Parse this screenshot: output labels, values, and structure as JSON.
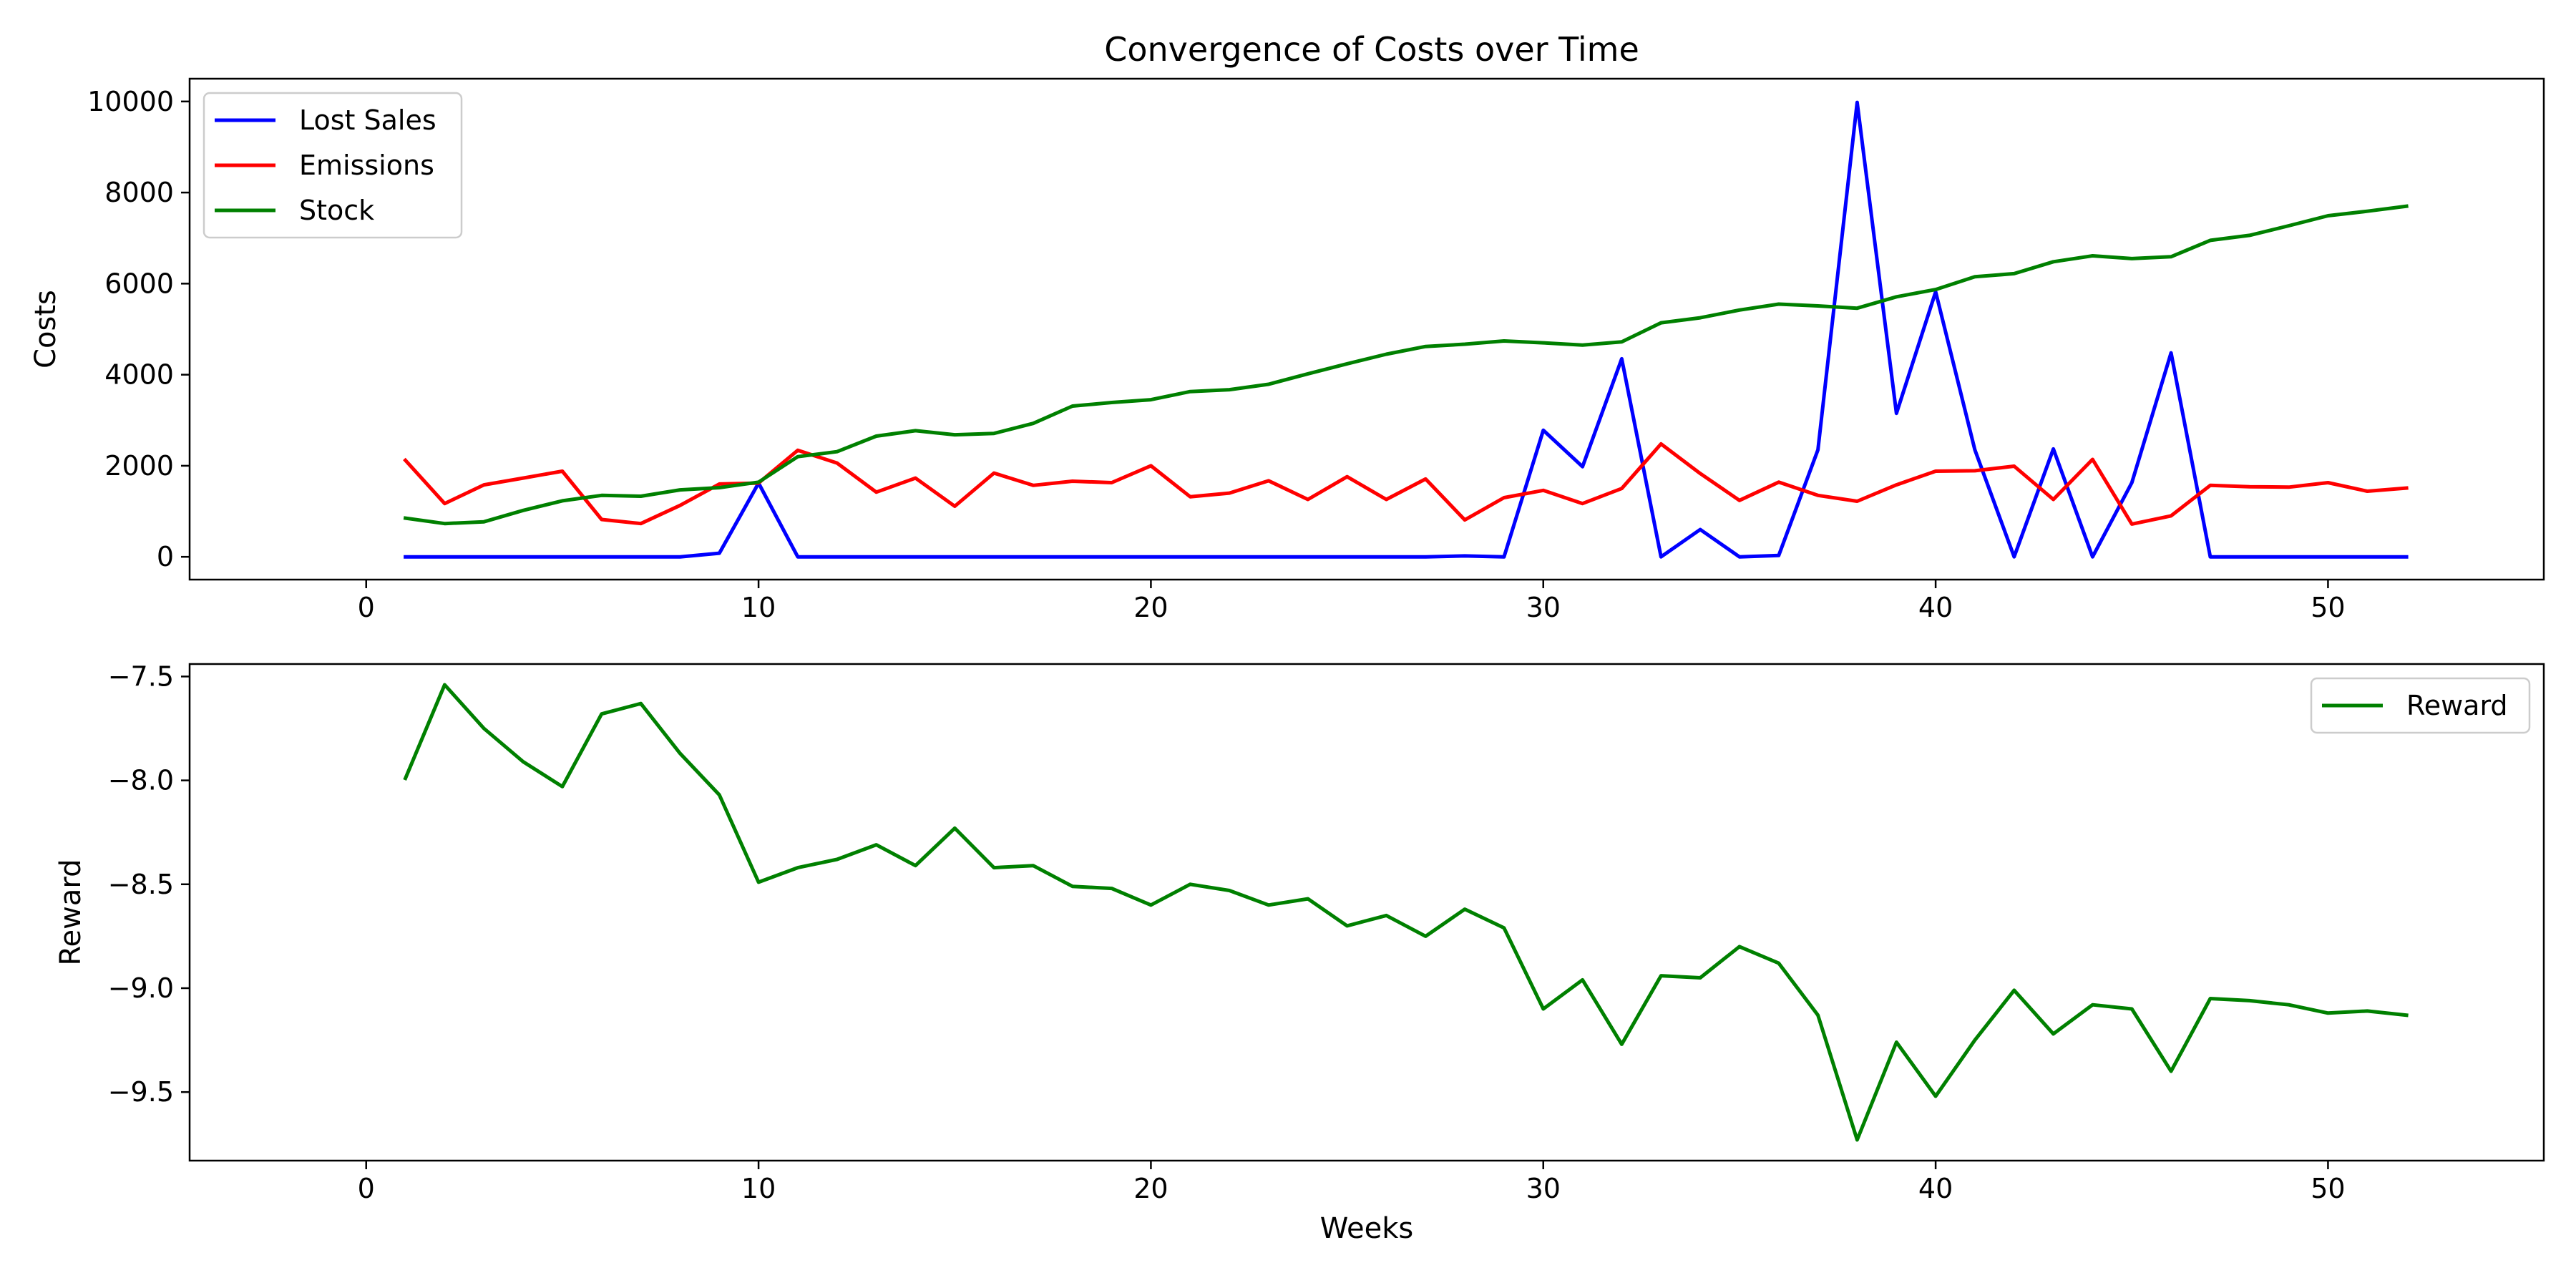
{
  "chart_data": [
    {
      "type": "line",
      "title": "Convergence of Costs over Time",
      "xlabel": "",
      "ylabel": "Costs",
      "xlim": [
        -4.5,
        55.5
      ],
      "ylim": [
        -500,
        10500
      ],
      "xticks": [
        0,
        10,
        20,
        30,
        40,
        50
      ],
      "yticks": [
        0,
        2000,
        4000,
        6000,
        8000,
        10000
      ],
      "xtick_labels": [
        "0",
        "10",
        "20",
        "30",
        "40",
        "50"
      ],
      "ytick_labels": [
        "0",
        "2000",
        "4000",
        "6000",
        "8000",
        "10000"
      ],
      "grid": false,
      "legend": "upper-left",
      "x": [
        1,
        2,
        3,
        4,
        5,
        6,
        7,
        8,
        9,
        10,
        11,
        12,
        13,
        14,
        15,
        16,
        17,
        18,
        19,
        20,
        21,
        22,
        23,
        24,
        25,
        26,
        27,
        28,
        29,
        30,
        31,
        32,
        33,
        34,
        35,
        36,
        37,
        38,
        39,
        40,
        41,
        42,
        43,
        44,
        45,
        46,
        47,
        48,
        49,
        50,
        51,
        52
      ],
      "series": [
        {
          "name": "Lost Sales",
          "color": "#0000ff",
          "values": [
            0,
            0,
            0,
            0,
            0,
            0,
            0,
            0,
            80,
            1620,
            0,
            0,
            0,
            0,
            0,
            0,
            0,
            0,
            0,
            0,
            0,
            0,
            0,
            0,
            0,
            0,
            0,
            20,
            0,
            2780,
            1980,
            4350,
            0,
            600,
            0,
            30,
            2350,
            9980,
            3150,
            5820,
            2350,
            0,
            2370,
            0,
            1630,
            4480,
            0,
            0,
            0,
            0,
            0,
            0
          ]
        },
        {
          "name": "Emissions",
          "color": "#ff0000",
          "values": [
            2120,
            1170,
            1580,
            1730,
            1880,
            820,
            730,
            1130,
            1600,
            1620,
            2340,
            2060,
            1420,
            1730,
            1110,
            1840,
            1570,
            1660,
            1630,
            2000,
            1320,
            1400,
            1670,
            1260,
            1760,
            1260,
            1710,
            810,
            1300,
            1460,
            1170,
            1500,
            2480,
            1830,
            1240,
            1640,
            1350,
            1220,
            1580,
            1880,
            1890,
            1990,
            1260,
            2140,
            720,
            900,
            1570,
            1540,
            1530,
            1630,
            1440,
            1510
          ]
        },
        {
          "name": "Stock",
          "color": "#008000",
          "values": [
            850,
            730,
            770,
            1020,
            1230,
            1350,
            1330,
            1470,
            1520,
            1640,
            2200,
            2310,
            2650,
            2770,
            2680,
            2710,
            2930,
            3310,
            3390,
            3450,
            3630,
            3670,
            3790,
            4020,
            4240,
            4450,
            4620,
            4670,
            4740,
            4700,
            4650,
            4720,
            5140,
            5250,
            5420,
            5550,
            5510,
            5460,
            5710,
            5870,
            6150,
            6220,
            6480,
            6610,
            6550,
            6590,
            6950,
            7060,
            7270,
            7490,
            7590,
            7700
          ]
        }
      ]
    },
    {
      "type": "line",
      "title": "",
      "xlabel": "Weeks",
      "ylabel": "Reward",
      "xlim": [
        -4.5,
        55.5
      ],
      "ylim": [
        -9.83,
        -7.44
      ],
      "xticks": [
        0,
        10,
        20,
        30,
        40,
        50
      ],
      "yticks": [
        -7.5,
        -8.0,
        -8.5,
        -9.0,
        -9.5
      ],
      "xtick_labels": [
        "0",
        "10",
        "20",
        "30",
        "40",
        "50"
      ],
      "ytick_labels": [
        "−7.5",
        "−8.0",
        "−8.5",
        "−9.0",
        "−9.5"
      ],
      "grid": false,
      "legend": "upper-right",
      "x": [
        1,
        2,
        3,
        4,
        5,
        6,
        7,
        8,
        9,
        10,
        11,
        12,
        13,
        14,
        15,
        16,
        17,
        18,
        19,
        20,
        21,
        22,
        23,
        24,
        25,
        26,
        27,
        28,
        29,
        30,
        31,
        32,
        33,
        34,
        35,
        36,
        37,
        38,
        39,
        40,
        41,
        42,
        43,
        44,
        45,
        46,
        47,
        48,
        49,
        50,
        51,
        52
      ],
      "series": [
        {
          "name": "Reward",
          "color": "#008000",
          "values": [
            -7.99,
            -7.54,
            -7.75,
            -7.91,
            -8.03,
            -7.68,
            -7.63,
            -7.87,
            -8.07,
            -8.49,
            -8.42,
            -8.38,
            -8.31,
            -8.41,
            -8.23,
            -8.42,
            -8.41,
            -8.51,
            -8.52,
            -8.6,
            -8.5,
            -8.53,
            -8.6,
            -8.57,
            -8.7,
            -8.65,
            -8.75,
            -8.62,
            -8.71,
            -9.1,
            -8.96,
            -9.27,
            -8.94,
            -8.95,
            -8.8,
            -8.88,
            -9.13,
            -9.73,
            -9.26,
            -9.52,
            -9.25,
            -9.01,
            -9.22,
            -9.08,
            -9.1,
            -9.4,
            -9.05,
            -9.06,
            -9.08,
            -9.12,
            -9.11,
            -9.13
          ]
        }
      ]
    }
  ]
}
